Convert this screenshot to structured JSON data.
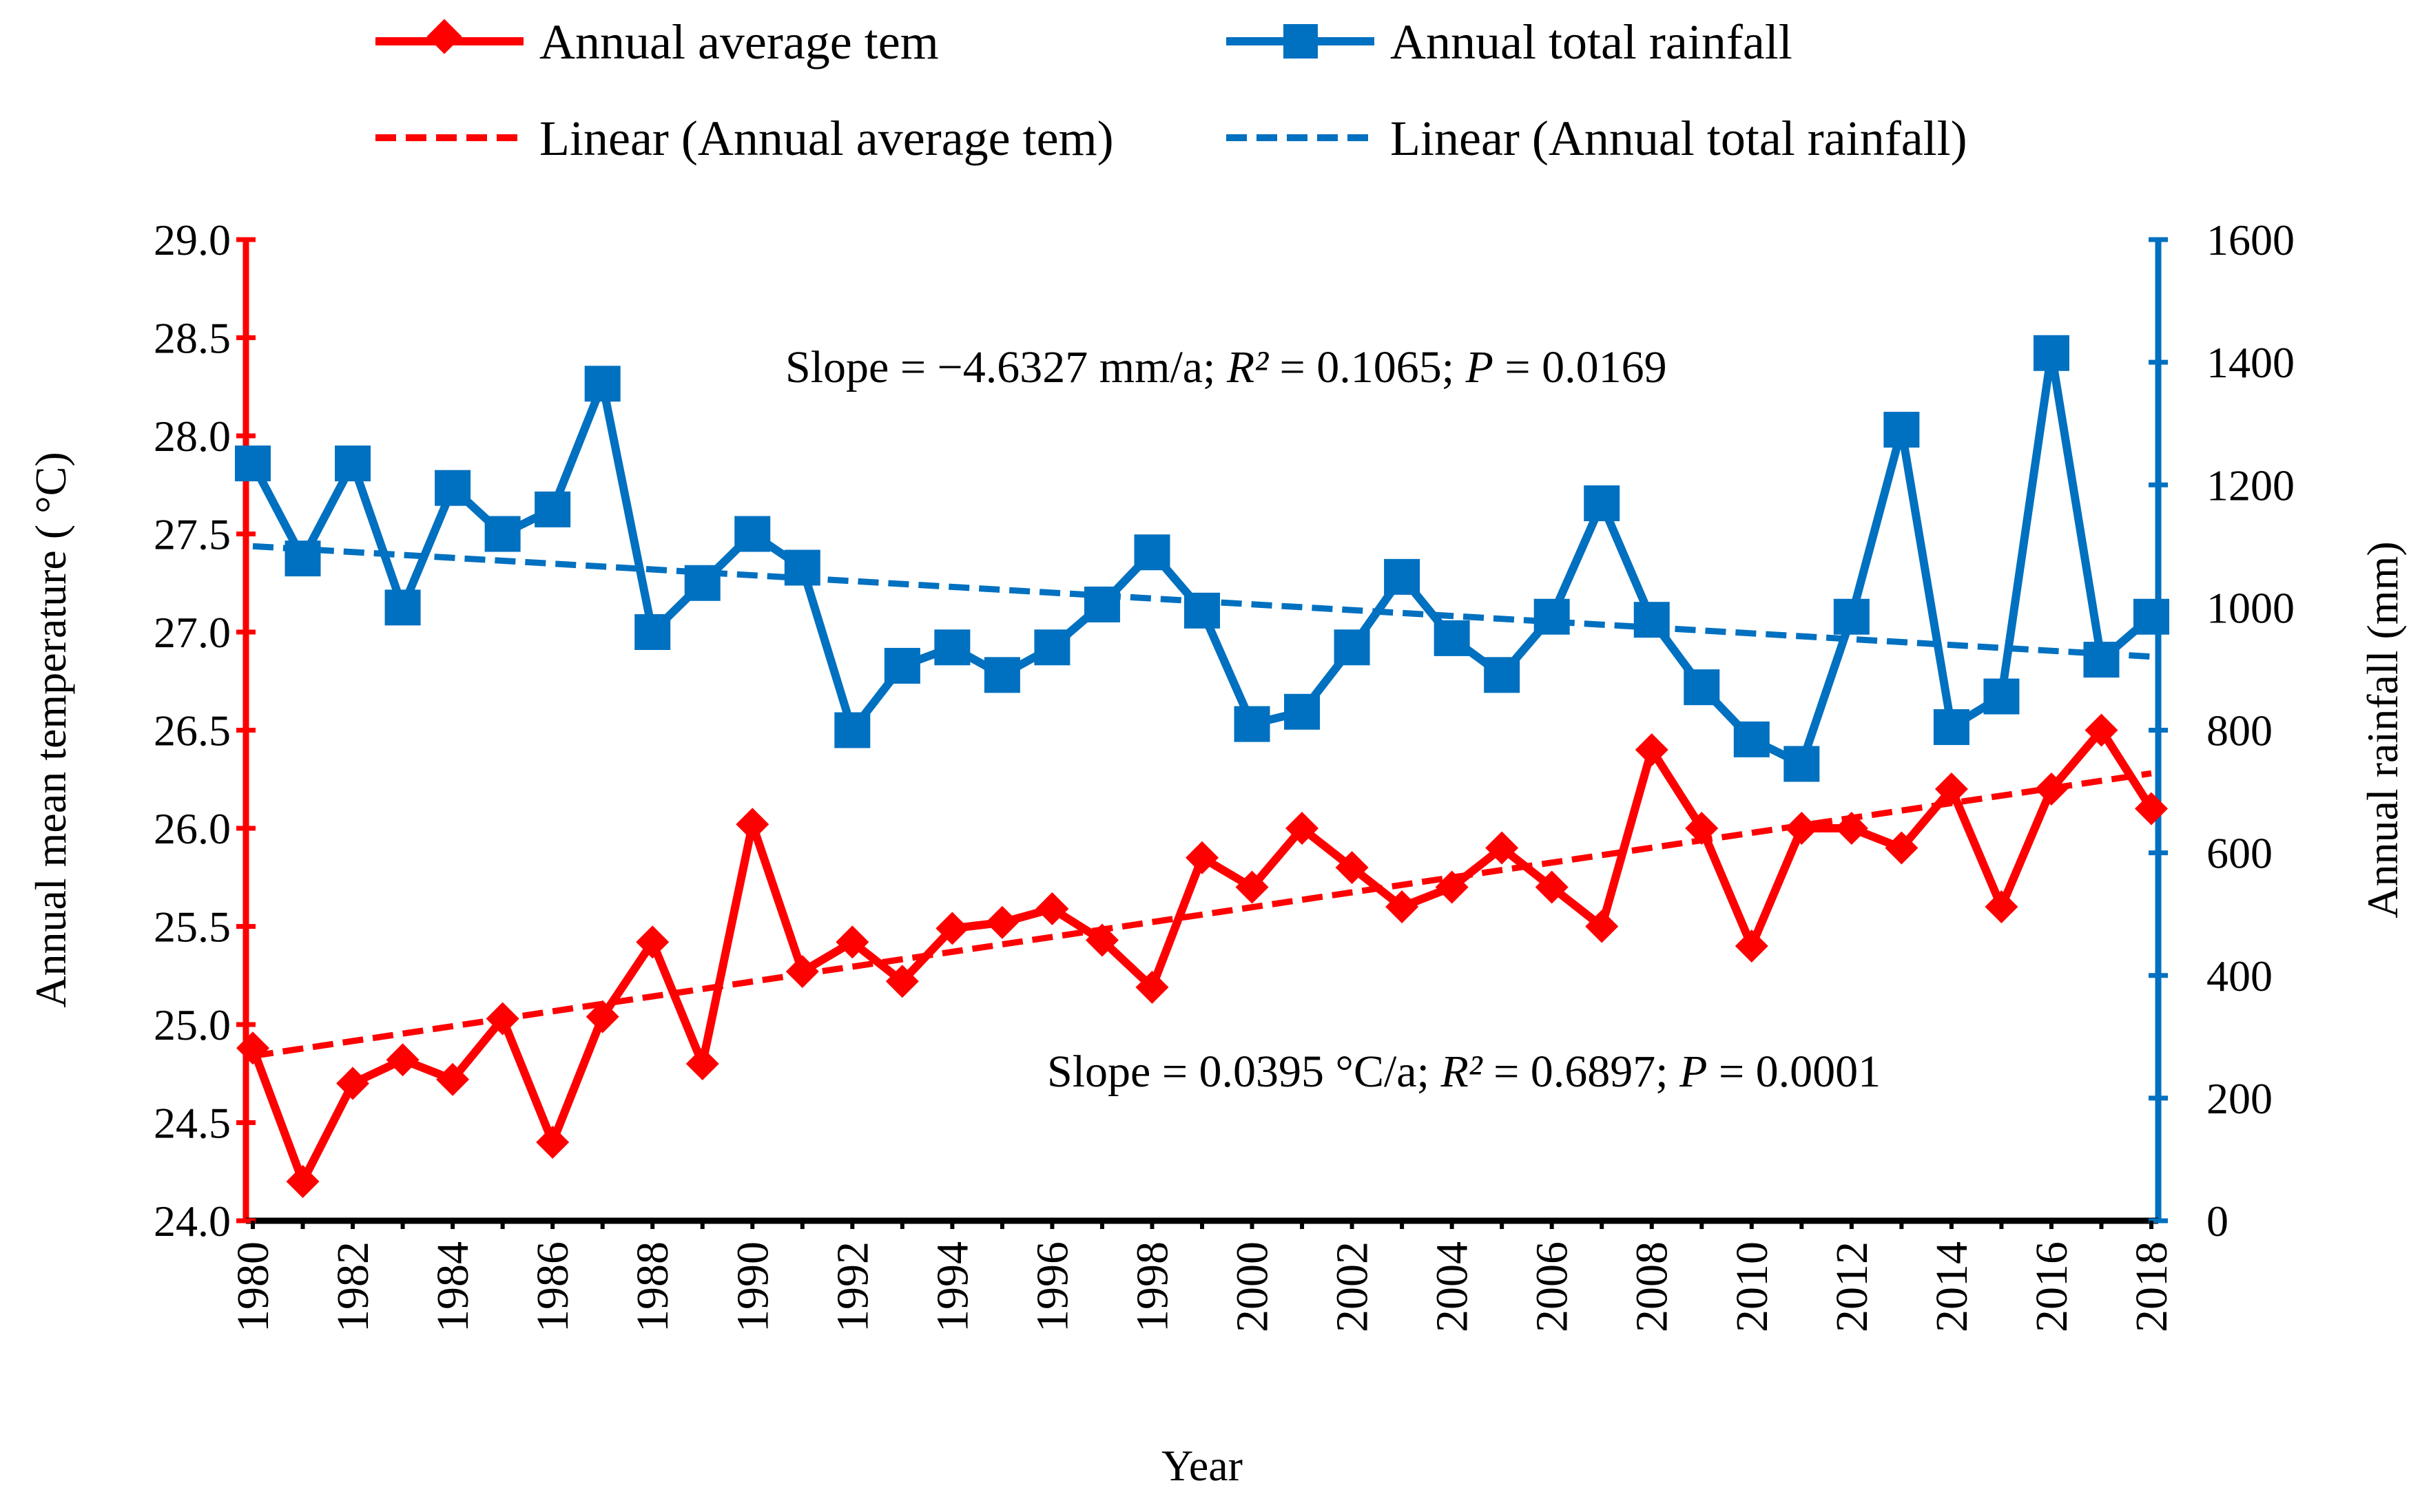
{
  "chart_data": {
    "type": "line",
    "xlabel": "Year",
    "ylabel_left": "Annual mean temperature ( °C)",
    "ylabel_right": "Annual rainfall (mm)",
    "ylim_left": [
      24.0,
      29.0
    ],
    "ylim_right": [
      0,
      1600
    ],
    "xlim": [
      1980,
      2018
    ],
    "x_ticks": [
      "1980",
      "1982",
      "1984",
      "1986",
      "1988",
      "1990",
      "1992",
      "1994",
      "1996",
      "1998",
      "2000",
      "2002",
      "2004",
      "2006",
      "2008",
      "2010",
      "2012",
      "2014",
      "2016",
      "2018"
    ],
    "y_ticks_left": [
      "24.0",
      "24.5",
      "25.0",
      "25.5",
      "26.0",
      "26.5",
      "27.0",
      "27.5",
      "28.0",
      "28.5",
      "29.0"
    ],
    "y_ticks_right": [
      "0",
      "200",
      "400",
      "600",
      "800",
      "1000",
      "1200",
      "1400",
      "1600"
    ],
    "x": [
      1980,
      1981,
      1982,
      1983,
      1984,
      1985,
      1986,
      1987,
      1988,
      1989,
      1990,
      1991,
      1992,
      1993,
      1994,
      1995,
      1996,
      1997,
      1998,
      1999,
      2000,
      2001,
      2002,
      2003,
      2004,
      2005,
      2006,
      2007,
      2008,
      2009,
      2010,
      2011,
      2012,
      2013,
      2014,
      2015,
      2016,
      2017,
      2018
    ],
    "series": [
      {
        "name": "Annual average tem",
        "axis": "left",
        "color": "#ff0000",
        "marker": "diamond",
        "values": [
          24.88,
          24.2,
          24.7,
          24.82,
          24.72,
          25.03,
          24.4,
          25.04,
          25.42,
          24.8,
          26.02,
          25.27,
          25.42,
          25.22,
          25.49,
          25.52,
          25.59,
          25.43,
          25.19,
          25.85,
          25.7,
          26.0,
          25.8,
          25.6,
          25.7,
          25.9,
          25.7,
          25.5,
          26.4,
          26.0,
          25.4,
          26.0,
          26.0,
          25.9,
          26.2,
          25.6,
          26.2,
          26.5,
          26.1
        ]
      },
      {
        "name": "Annual total rainfall",
        "axis": "right",
        "color": "#0070c0",
        "marker": "square",
        "values": [
          1235,
          1080,
          1235,
          1000,
          1195,
          1120,
          1160,
          1365,
          960,
          1040,
          1120,
          1065,
          800,
          905,
          935,
          890,
          935,
          1005,
          1090,
          995,
          810,
          830,
          935,
          1050,
          950,
          890,
          985,
          1170,
          980,
          870,
          785,
          745,
          985,
          1290,
          805,
          855,
          1415,
          915,
          985
        ]
      }
    ],
    "trendlines": [
      {
        "name": "Linear (Annual average tem)",
        "axis": "left",
        "color": "#ff0000",
        "style": "dashed",
        "start": [
          1980,
          24.84
        ],
        "end": [
          2018,
          26.28
        ]
      },
      {
        "name": "Linear (Annual total rainfall)",
        "axis": "right",
        "color": "#0070c0",
        "style": "dashed",
        "start": [
          1980,
          1100
        ],
        "end": [
          2018,
          920
        ]
      }
    ],
    "legend": {
      "placement": "top",
      "entries": [
        "Annual average tem",
        "Annual total rainfall",
        "Linear (Annual average tem)",
        "Linear (Annual total rainfall)"
      ]
    },
    "annotations": [
      {
        "id": "rain",
        "prefix": "Slope = −4.6327 mm/a; ",
        "r_label": "R²",
        "mid": " = 0.1065; ",
        "p_label": "P",
        "end": " = 0.0169"
      },
      {
        "id": "temp",
        "prefix": "Slope = 0.0395 °C/a; ",
        "r_label": "R²",
        "mid": " = 0.6897; ",
        "p_label": "P",
        "end": " = 0.0001"
      }
    ]
  }
}
